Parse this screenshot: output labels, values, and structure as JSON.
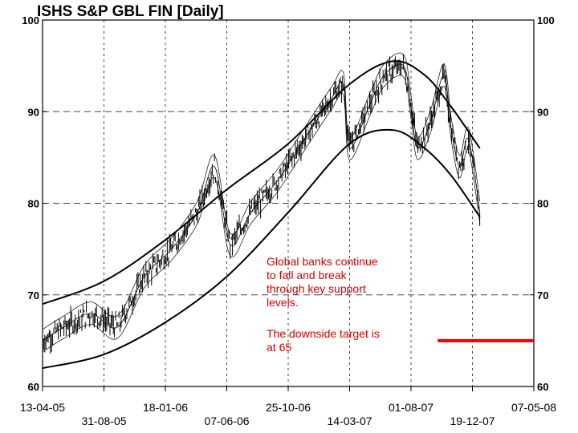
{
  "chart_data": {
    "type": "line",
    "title": "ISHS S&P GBL FIN  [Daily]",
    "xlabel": "",
    "ylabel": "",
    "ylim": [
      60,
      100
    ],
    "y_ticks": [
      60,
      70,
      80,
      90,
      100
    ],
    "x_ticks_top_row": [
      "13-04-05",
      "18-01-06",
      "25-10-06",
      "01-08-07",
      "07-05-08"
    ],
    "x_ticks_bottom_row": [
      "31-08-05",
      "07-06-06",
      "14-03-07",
      "19-12-07"
    ],
    "grid": true,
    "series": [
      {
        "role": "price",
        "style": "bars",
        "x": [
          "2005-04-13",
          "2005-06-01",
          "2005-08-01",
          "2005-10-01",
          "2005-12-01",
          "2006-02-01",
          "2006-04-01",
          "2006-05-10",
          "2006-06-15",
          "2006-08-01",
          "2006-10-01",
          "2006-12-01",
          "2007-02-01",
          "2007-02-28",
          "2007-03-14",
          "2007-05-01",
          "2007-06-01",
          "2007-07-15",
          "2007-08-01",
          "2007-08-16",
          "2007-09-15",
          "2007-10-15",
          "2007-11-01",
          "2007-11-20",
          "2007-12-10",
          "2008-01-05"
        ],
        "values": [
          65.0,
          66.5,
          68.0,
          66.5,
          72.0,
          75.0,
          79.0,
          84.0,
          75.5,
          79.0,
          82.5,
          87.0,
          91.5,
          93.0,
          86.0,
          91.0,
          94.0,
          95.0,
          90.5,
          86.0,
          89.0,
          94.0,
          88.0,
          84.0,
          87.0,
          79.0
        ]
      },
      {
        "role": "upper-band",
        "x": [
          "2005-04-13",
          "2005-08-31",
          "2006-01-18",
          "2006-06-07",
          "2006-10-25",
          "2007-03-14",
          "2007-06-20",
          "2007-09-01",
          "2007-11-01",
          "2008-01-05"
        ],
        "values": [
          69.0,
          71.5,
          76.0,
          81.5,
          86.5,
          93.0,
          95.5,
          94.0,
          90.5,
          86.0
        ]
      },
      {
        "role": "lower-band",
        "x": [
          "2005-04-13",
          "2005-08-31",
          "2006-01-18",
          "2006-06-07",
          "2006-10-25",
          "2007-03-14",
          "2007-06-20",
          "2007-09-01",
          "2007-11-01",
          "2008-01-05"
        ],
        "values": [
          62.0,
          63.5,
          67.0,
          72.0,
          79.0,
          86.5,
          88.0,
          86.0,
          83.0,
          78.5
        ]
      }
    ],
    "target_line": {
      "value": 65,
      "x_start": "2007-10-01",
      "x_end": "2008-05-07",
      "color": "#ee0000"
    },
    "annotations": [
      "Global banks continue to fall and break through key support levels.",
      "The downside target is at 65"
    ]
  },
  "annotation_lines": {
    "main": [
      "Global banks continue",
      "to fall and break",
      "through key support",
      "levels."
    ],
    "target": [
      "The downside target is",
      "at 65"
    ]
  },
  "colors": {
    "annotation": "#d00000",
    "target_line": "#ee0000",
    "price": "#000000",
    "grid": "#333333"
  }
}
